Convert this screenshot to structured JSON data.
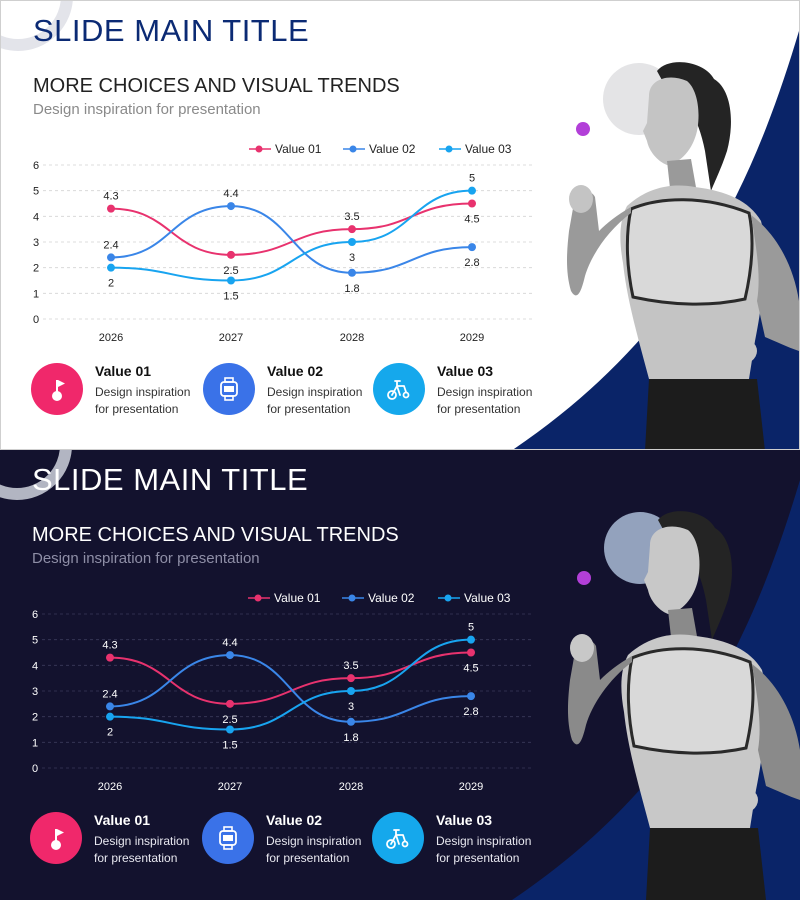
{
  "slides": [
    {
      "theme": "light",
      "title": "SLIDE MAIN TITLE",
      "subtitle": "MORE CHOICES AND VISUAL TRENDS",
      "tagline": "Design inspiration for presentation",
      "colors": {
        "bg": "#ffffff",
        "title": "#0b2a74",
        "text": "#222222",
        "muted": "#8a8a8a",
        "grid": "#d4d4d4",
        "accent_navy": "#0a2468"
      },
      "features": [
        {
          "icon": "golf-flag-icon",
          "color": "#f0286b",
          "title": "Value 01",
          "desc1": "Design inspiration",
          "desc2": "for presentation"
        },
        {
          "icon": "smartwatch-icon",
          "color": "#3a72e8",
          "title": "Value 02",
          "desc1": "Design inspiration",
          "desc2": "for presentation"
        },
        {
          "icon": "exercise-bike-icon",
          "color": "#15a8ec",
          "title": "Value 03",
          "desc1": "Design inspiration",
          "desc2": "for presentation"
        }
      ]
    },
    {
      "theme": "dark",
      "title": "SLIDE MAIN TITLE",
      "subtitle": "MORE CHOICES AND VISUAL TRENDS",
      "tagline": "Design inspiration for presentation",
      "colors": {
        "bg": "#13122e",
        "title": "#ffffff",
        "text": "#ffffff",
        "muted": "#8e8ea6",
        "grid": "#3a3a5a",
        "accent_navy": "#0a2468"
      },
      "features": [
        {
          "icon": "golf-flag-icon",
          "color": "#f0286b",
          "title": "Value 01",
          "desc1": "Design inspiration",
          "desc2": "for presentation"
        },
        {
          "icon": "smartwatch-icon",
          "color": "#3a72e8",
          "title": "Value 02",
          "desc1": "Design inspiration",
          "desc2": "for presentation"
        },
        {
          "icon": "exercise-bike-icon",
          "color": "#15a8ec",
          "title": "Value 03",
          "desc1": "Design inspiration",
          "desc2": "for presentation"
        }
      ]
    }
  ],
  "chart_data": [
    {
      "type": "line",
      "categories": [
        "2026",
        "2027",
        "2028",
        "2029"
      ],
      "series": [
        {
          "name": "Value 01",
          "color": "#e8326e",
          "values": [
            4.3,
            2.5,
            3.5,
            4.5
          ]
        },
        {
          "name": "Value 02",
          "color": "#3a86e8",
          "values": [
            2.4,
            4.4,
            1.8,
            2.8
          ]
        },
        {
          "name": "Value 03",
          "color": "#18a4f0",
          "values": [
            2,
            1.5,
            3,
            5
          ]
        }
      ],
      "yticks": [
        "0",
        "1",
        "2",
        "3",
        "4",
        "5",
        "6"
      ],
      "ylim": [
        0,
        6
      ],
      "grid": true,
      "legend": "top",
      "smooth": true
    },
    {
      "type": "line",
      "categories": [
        "2026",
        "2027",
        "2028",
        "2029"
      ],
      "series": [
        {
          "name": "Value 01",
          "color": "#e8326e",
          "values": [
            4.3,
            2.5,
            3.5,
            4.5
          ]
        },
        {
          "name": "Value 02",
          "color": "#3a86e8",
          "values": [
            2.4,
            4.4,
            1.8,
            2.8
          ]
        },
        {
          "name": "Value 03",
          "color": "#18a4f0",
          "values": [
            2,
            1.5,
            3,
            5
          ]
        }
      ],
      "yticks": [
        "0",
        "1",
        "2",
        "3",
        "4",
        "5",
        "6"
      ],
      "ylim": [
        0,
        6
      ],
      "grid": true,
      "legend": "top",
      "smooth": true
    }
  ]
}
